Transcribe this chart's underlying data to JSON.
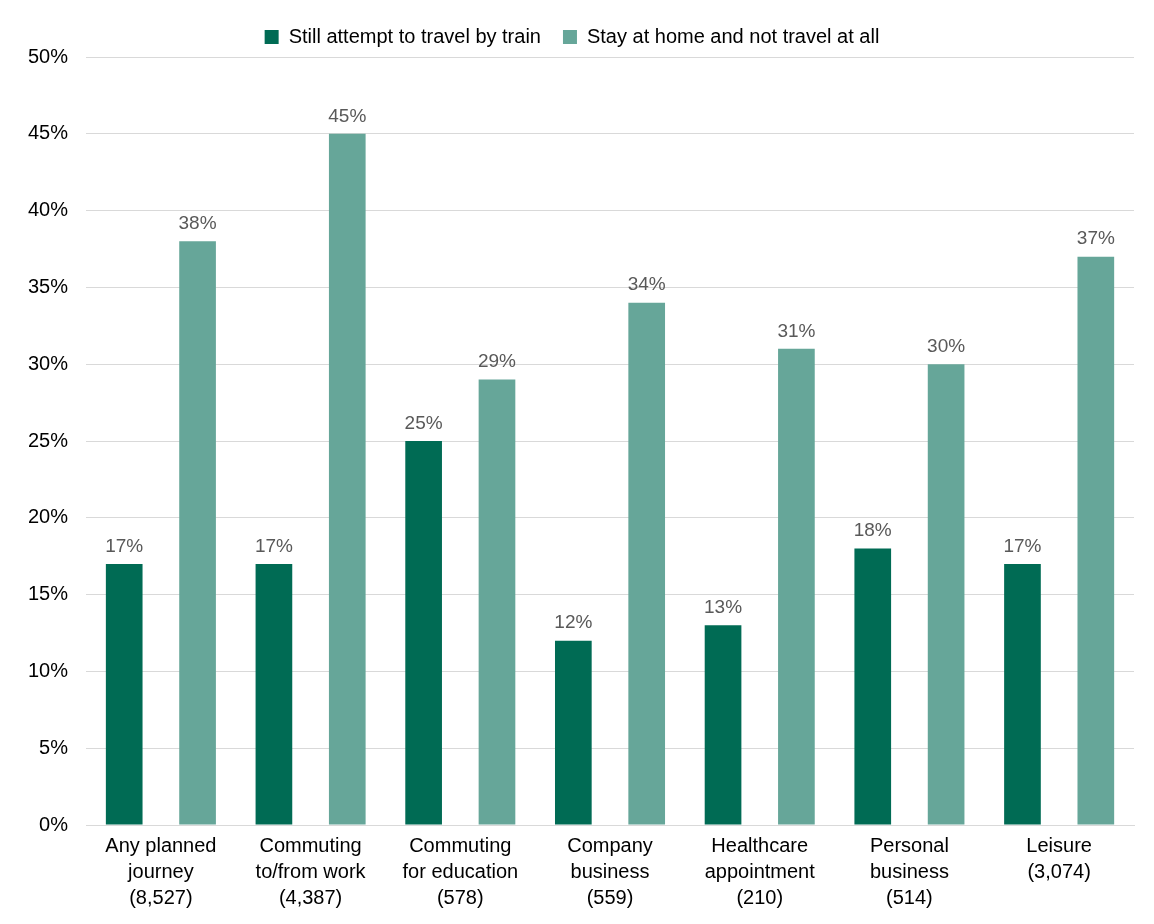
{
  "chart_data": {
    "type": "bar",
    "categories": [
      "Any planned journey (8,527)",
      "Commuting to/from work (4,387)",
      "Commuting for education (578)",
      "Company business (559)",
      "Healthcare appointment (210)",
      "Personal business (514)",
      "Leisure (3,074)"
    ],
    "series": [
      {
        "name": "Still attempt to travel by train",
        "color": "#006b54",
        "values": [
          17,
          17,
          25,
          12,
          13,
          18,
          17
        ]
      },
      {
        "name": "Stay at home and not travel at all",
        "color": "#66a699",
        "values": [
          38,
          45,
          29,
          34,
          31,
          30,
          37
        ]
      }
    ],
    "ylim": [
      0,
      50
    ],
    "yticks": [
      {
        "value": 0,
        "label": "0%"
      },
      {
        "value": 5,
        "label": "5%"
      },
      {
        "value": 10,
        "label": "10%"
      },
      {
        "value": 15,
        "label": "15%"
      },
      {
        "value": 20,
        "label": "20%"
      },
      {
        "value": 25,
        "label": "25%"
      },
      {
        "value": 30,
        "label": "30%"
      },
      {
        "value": 35,
        "label": "35%"
      },
      {
        "value": 40,
        "label": "40%"
      },
      {
        "value": 45,
        "label": "45%"
      },
      {
        "value": 50,
        "label": "50%"
      }
    ],
    "value_labels": [
      [
        "17%",
        "17%",
        "25%",
        "12%",
        "13%",
        "18%",
        "17%"
      ],
      [
        "38%",
        "45%",
        "29%",
        "34%",
        "31%",
        "30%",
        "37%"
      ]
    ],
    "grid": "y",
    "legend": "top"
  }
}
